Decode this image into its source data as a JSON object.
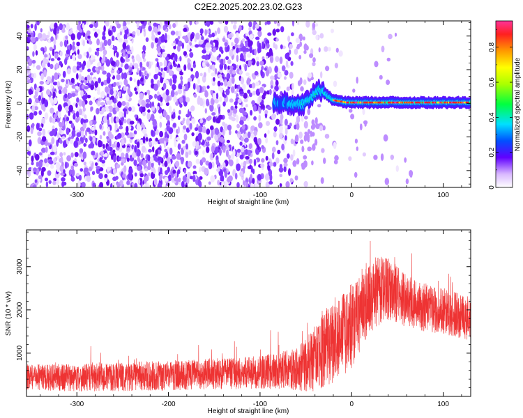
{
  "title": "C2E2.2025.202.23.02.G23",
  "chart_data": [
    {
      "type": "heatmap",
      "xlabel": "Height of straight line (km)",
      "ylabel": "Frequency (Hz)",
      "xlim": [
        -355,
        130
      ],
      "ylim": [
        -50,
        49
      ],
      "xticks": [
        -300,
        -200,
        -100,
        0,
        100
      ],
      "yticks": [
        -40,
        -20,
        0,
        20,
        40
      ],
      "colorbar": {
        "label": "Normalized spectral amplitude",
        "range": [
          0,
          0.95
        ],
        "ticks": [
          0,
          0.2,
          0.4,
          0.6,
          0.8
        ]
      },
      "regions": [
        {
          "x": [
            -355,
            -85
          ],
          "freq_range": [
            -50,
            49
          ],
          "amplitude": "low, scattered noise (0.05-0.2)"
        },
        {
          "x": [
            -85,
            -25
          ],
          "freq_range": [
            -50,
            49
          ],
          "amplitude": "fading noise, signal emerging near 0-8 Hz"
        },
        {
          "x": [
            -25,
            130
          ],
          "freq_center": 0.5,
          "amplitude": "strong tone near 0 Hz (up to ~0.9)"
        }
      ],
      "grid": false
    },
    {
      "type": "line",
      "xlabel": "Height of straight line (km)",
      "ylabel": "SNR (10 * v/v)",
      "xlim": [
        -355,
        130
      ],
      "ylim": [
        0,
        3850
      ],
      "xticks": [
        -300,
        -200,
        -100,
        0,
        100
      ],
      "yticks": [
        1000,
        2000,
        3000
      ],
      "color": "#ee3333",
      "trend_x": [
        -355,
        -300,
        -200,
        -100,
        -70,
        -50,
        -30,
        -10,
        0,
        10,
        20,
        30,
        40,
        60,
        80,
        100,
        130
      ],
      "trend_y": [
        450,
        430,
        480,
        560,
        600,
        700,
        1100,
        1400,
        1650,
        2000,
        2300,
        2450,
        2500,
        2200,
        2050,
        1950,
        1800
      ],
      "spread_x": [
        -355,
        -100,
        -60,
        -30,
        0,
        30,
        60,
        130
      ],
      "spread_y": [
        300,
        380,
        500,
        900,
        1000,
        800,
        600,
        500
      ],
      "grid": false
    }
  ]
}
